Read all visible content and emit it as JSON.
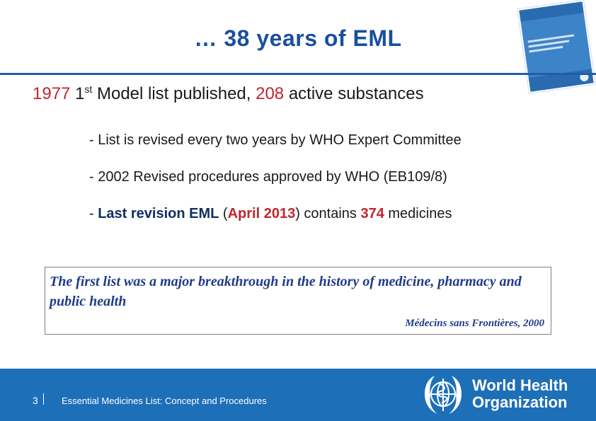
{
  "header": {
    "title": "… 38 years of EML"
  },
  "headline": {
    "year": "1977",
    "ordinal_num": "1",
    "ordinal_suffix": "st",
    "text_a": " Model list published, ",
    "count": "208",
    "text_b": " active substances"
  },
  "bullets": {
    "b1": "- List is revised every two years by WHO Expert Committee",
    "b2": "- 2002 Revised procedures approved by WHO (EB109/8)",
    "b3": {
      "dash": "- ",
      "strong": "Last revision EML",
      "open": " (",
      "date": "April 2013",
      "close": ") contains ",
      "count": "374",
      "tail": " medicines"
    }
  },
  "quote": {
    "text": "The first list was a major breakthrough in the history of medicine, pharmacy and public health",
    "source": "Médecins sans Frontières, 2000"
  },
  "footer": {
    "page_number": "3",
    "caption": "Essential Medicines List: Concept and Procedures",
    "org_line1": "World Health",
    "org_line2": "Organization"
  },
  "colors": {
    "title_blue": "#1a4f9c",
    "highlight_red": "#c0262d",
    "footer_blue": "#1d6fb8"
  },
  "icons": {
    "cover": "report-cover-thumbnail",
    "emblem": "who-emblem-icon"
  }
}
